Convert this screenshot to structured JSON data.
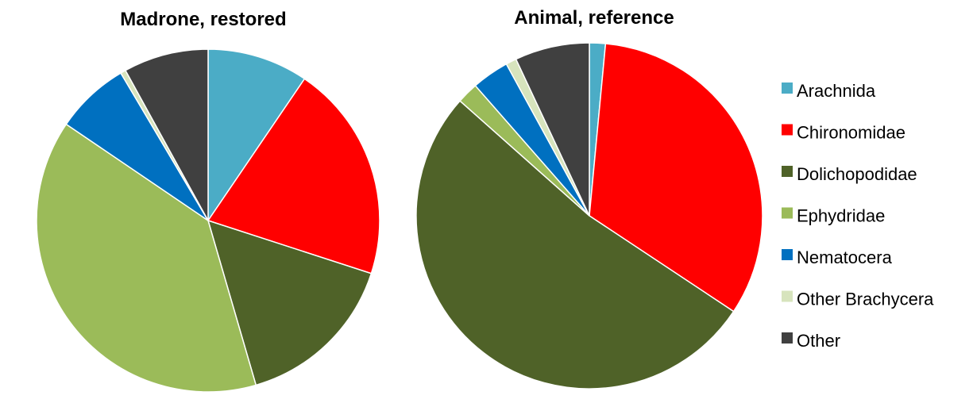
{
  "chart_data": [
    {
      "type": "pie",
      "title": "Madrone, restored",
      "categories": [
        "Arachnida",
        "Chironomidae",
        "Dolichopodidae",
        "Ephydridae",
        "Nematocera",
        "Other Brachycera",
        "Other"
      ],
      "values": [
        9.5,
        20.5,
        15.5,
        39.0,
        7.0,
        0.5,
        8.0
      ],
      "unit": "percent"
    },
    {
      "type": "pie",
      "title": "Animal, reference",
      "categories": [
        "Arachnida",
        "Chironomidae",
        "Dolichopodidae",
        "Ephydridae",
        "Nematocera",
        "Other Brachycera",
        "Other"
      ],
      "values": [
        1.5,
        33.0,
        52.5,
        2.0,
        3.5,
        1.0,
        7.0
      ],
      "unit": "percent"
    }
  ],
  "legend": {
    "placement": "right",
    "items": [
      {
        "label": "Arachnida",
        "color": "#4bacc6"
      },
      {
        "label": "Chironomidae",
        "color": "#ff0000"
      },
      {
        "label": "Dolichopodidae",
        "color": "#4f6228"
      },
      {
        "label": "Ephydridae",
        "color": "#9bbb59"
      },
      {
        "label": "Nematocera",
        "color": "#0070c0"
      },
      {
        "label": "Other Brachycera",
        "color": "#d7e4bd"
      },
      {
        "label": "Other",
        "color": "#404040"
      }
    ]
  }
}
